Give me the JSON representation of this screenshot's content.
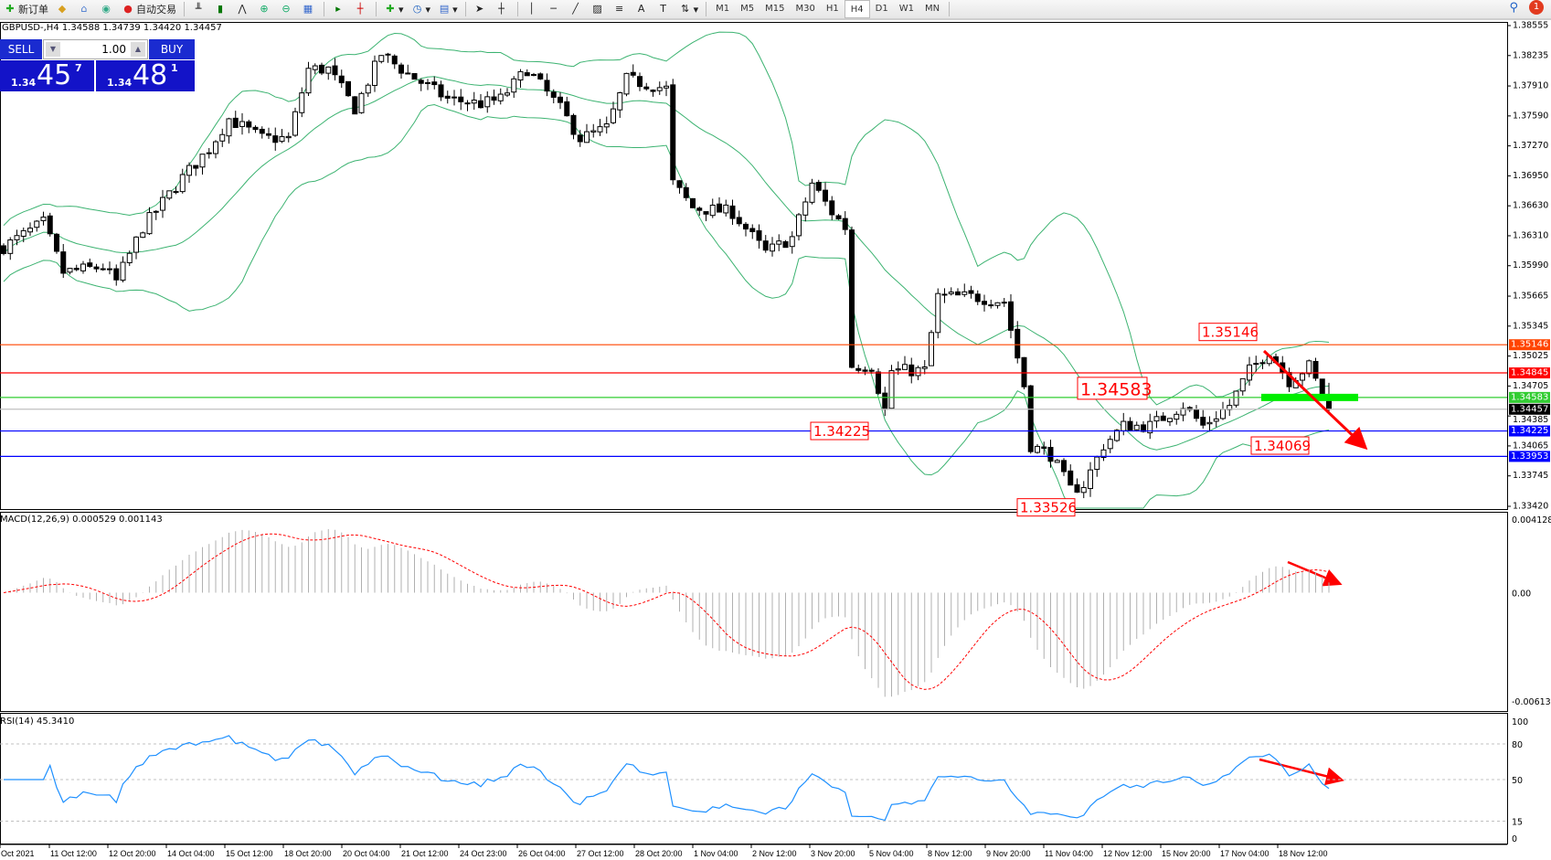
{
  "toolbar": {
    "new_order": "新订单",
    "auto_trading": "自动交易",
    "timeframes": [
      "M1",
      "M5",
      "M15",
      "M30",
      "H1",
      "H4",
      "D1",
      "W1",
      "MN"
    ],
    "active_timeframe": "H4",
    "notification_count": "1"
  },
  "chart": {
    "legend": "GBPUSD-,H4  1.34588 1.34739 1.34420 1.34457",
    "symbol": "GBPUSD-",
    "timeframe": "H4",
    "ohlc": {
      "open": 1.34588,
      "high": 1.34739,
      "low": 1.3442,
      "close": 1.34457
    },
    "price_axis": [
      "1.38555",
      "1.38235",
      "1.37910",
      "1.37590",
      "1.37270",
      "1.36950",
      "1.36630",
      "1.36310",
      "1.35990",
      "1.35665",
      "1.35345",
      "1.35025",
      "1.34705",
      "1.34385",
      "1.34065",
      "1.33745",
      "1.33420"
    ],
    "price_range": [
      1.3342,
      1.38555
    ],
    "price_path": [
      [
        0,
        1.3619
      ],
      [
        6,
        1.3645
      ],
      [
        9,
        1.3592
      ],
      [
        15,
        1.3598
      ],
      [
        17,
        1.3582
      ],
      [
        21,
        1.364
      ],
      [
        27,
        1.3693
      ],
      [
        31,
        1.3724
      ],
      [
        34,
        1.3756
      ],
      [
        39,
        1.3735
      ],
      [
        43,
        1.3735
      ],
      [
        46,
        1.3809
      ],
      [
        49,
        1.3809
      ],
      [
        53,
        1.3767
      ],
      [
        57,
        1.3825
      ],
      [
        61,
        1.3804
      ],
      [
        67,
        1.3777
      ],
      [
        72,
        1.3772
      ],
      [
        75,
        1.3777
      ],
      [
        79,
        1.3809
      ],
      [
        84,
        1.3767
      ],
      [
        87,
        1.3735
      ],
      [
        91,
        1.3746
      ],
      [
        94,
        1.3798
      ],
      [
        100,
        1.3788
      ],
      [
        101,
        1.3687
      ],
      [
        104,
        1.3661
      ],
      [
        110,
        1.3656
      ],
      [
        115,
        1.3613
      ],
      [
        119,
        1.3629
      ],
      [
        122,
        1.3687
      ],
      [
        125,
        1.3656
      ],
      [
        127,
        1.364
      ],
      [
        128,
        1.3492
      ],
      [
        131,
        1.3492
      ],
      [
        133,
        1.3444
      ],
      [
        134,
        1.3487
      ],
      [
        139,
        1.3487
      ],
      [
        141,
        1.3566
      ],
      [
        146,
        1.3566
      ],
      [
        151,
        1.3561
      ],
      [
        154,
        1.3471
      ],
      [
        155,
        1.3407
      ],
      [
        158,
        1.3397
      ],
      [
        161,
        1.336
      ],
      [
        163,
        1.3365
      ],
      [
        166,
        1.3407
      ],
      [
        169,
        1.3428
      ],
      [
        173,
        1.3428
      ],
      [
        178,
        1.345
      ],
      [
        181,
        1.3428
      ],
      [
        185,
        1.345
      ],
      [
        188,
        1.3487
      ],
      [
        191,
        1.3508
      ],
      [
        194,
        1.3476
      ],
      [
        197,
        1.3492
      ],
      [
        199,
        1.346
      ],
      [
        200,
        1.34457
      ]
    ],
    "levels": [
      {
        "price": "1.35146",
        "color": "#ff4500"
      },
      {
        "price": "1.34845",
        "color": "#ff0000"
      },
      {
        "price": "1.34583",
        "color": "#32cd32"
      },
      {
        "price": "1.34457",
        "color": "#000000",
        "line": "#c0c0c0"
      },
      {
        "price": "1.34225",
        "color": "#0000ff"
      },
      {
        "price": "1.33953",
        "color": "#0000ff"
      }
    ],
    "price_labels": [
      "1.35146",
      "1.34583",
      "1.34225",
      "1.33526",
      "1.34069"
    ],
    "bands_color": "#3cb371",
    "arrow_color": "#ff0000",
    "zone_color": "#00ee00"
  },
  "macd": {
    "label": "MACD(12,26,9) 0.000529 0.001143",
    "axis": [
      "0.004128",
      "0.00",
      "-0.006132"
    ],
    "range": [
      -0.006132,
      0.004128
    ]
  },
  "rsi": {
    "label": "RSI(14) 45.3410",
    "axis": [
      "100",
      "80",
      "50",
      "15",
      "0"
    ],
    "color": "#1e90ff"
  },
  "time_axis": [
    "Oct 2021",
    "11 Oct 12:00",
    "12 Oct 20:00",
    "14 Oct 04:00",
    "15 Oct 12:00",
    "18 Oct 20:00",
    "20 Oct 04:00",
    "21 Oct 12:00",
    "24 Oct 23:00",
    "26 Oct 04:00",
    "27 Oct 12:00",
    "28 Oct 20:00",
    "1 Nov 04:00",
    "2 Nov 12:00",
    "3 Nov 20:00",
    "5 Nov 04:00",
    "8 Nov 12:00",
    "9 Nov 20:00",
    "11 Nov 04:00",
    "12 Nov 12:00",
    "15 Nov 20:00",
    "17 Nov 04:00",
    "18 Nov 12:00"
  ],
  "trade_panel": {
    "sell_label": "SELL",
    "buy_label": "BUY",
    "lot": "1.00",
    "sell_price": {
      "small": "1.34",
      "big": "45",
      "sup": "7"
    },
    "buy_price": {
      "small": "1.34",
      "big": "48",
      "sup": "1"
    }
  }
}
